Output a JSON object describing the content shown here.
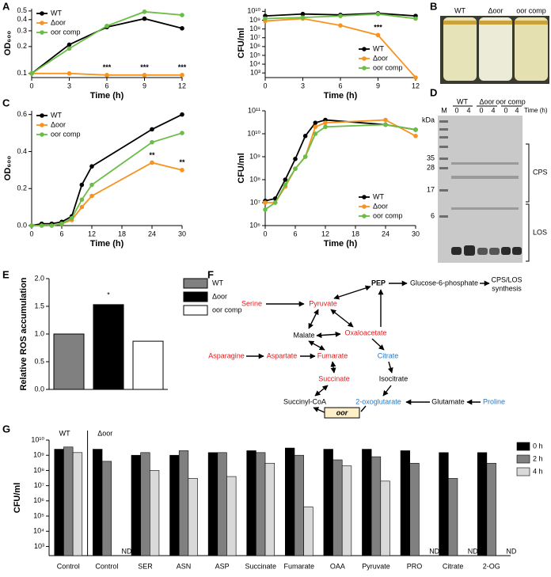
{
  "panels": [
    "A",
    "B",
    "C",
    "D",
    "E",
    "F",
    "G"
  ],
  "chart_data": [
    {
      "type": "line",
      "xlabel": "Time (h)",
      "ylabel": "OD₆₀₀",
      "log_y": true,
      "xlim": [
        0,
        12
      ],
      "xticks": [
        0,
        3,
        6,
        9,
        12
      ],
      "ylim": [
        0.09,
        0.53
      ],
      "yticks": [
        0.1,
        0.2,
        0.3,
        0.4,
        0.5
      ],
      "legend": "upper left",
      "x": [
        0,
        3,
        6,
        9,
        12
      ],
      "series": [
        {
          "name": "WT",
          "color": "#000000",
          "values": [
            0.1,
            0.21,
            0.33,
            0.41,
            0.32
          ]
        },
        {
          "name": "Δoor",
          "color": "#f7931e",
          "values": [
            0.1,
            0.1,
            0.096,
            0.096,
            0.096
          ]
        },
        {
          "name": "oor comp",
          "color": "#6abd45",
          "values": [
            0.1,
            0.19,
            0.34,
            0.49,
            0.45
          ]
        }
      ],
      "annotations": [
        {
          "x": 6,
          "text": "***"
        },
        {
          "x": 9,
          "text": "***"
        },
        {
          "x": 12,
          "text": "***"
        }
      ]
    },
    {
      "type": "line",
      "xlabel": "Time (h)",
      "ylabel": "CFU/ml",
      "log_y": true,
      "xlim": [
        0,
        12
      ],
      "xticks": [
        0,
        3,
        6,
        9,
        12
      ],
      "ylim": [
        300,
        20000000000.0
      ],
      "yticks": [
        {
          "value": 1000,
          "label": "10³"
        },
        {
          "value": 10000.0,
          "label": "10⁴"
        },
        {
          "value": 100000.0,
          "label": "10⁵"
        },
        {
          "value": 1000000.0,
          "label": "10⁶"
        },
        {
          "value": 10000000.0,
          "label": "10⁷"
        },
        {
          "value": 100000000.0,
          "label": "10⁸"
        },
        {
          "value": 1000000000.0,
          "label": "10⁹"
        },
        {
          "value": 10000000000.0,
          "label": "10¹⁰"
        }
      ],
      "legend": "lower right",
      "x": [
        0,
        3,
        6,
        9,
        12
      ],
      "series": [
        {
          "name": "WT",
          "color": "#000000",
          "values": [
            3000000000.0,
            5000000000.0,
            4000000000.0,
            6000000000.0,
            3000000000.0
          ]
        },
        {
          "name": "Δoor",
          "color": "#f7931e",
          "values": [
            800000000.0,
            1500000000.0,
            250000000.0,
            20000000.0,
            300
          ]
        },
        {
          "name": "oor comp",
          "color": "#6abd45",
          "values": [
            1500000000.0,
            2000000000.0,
            3000000000.0,
            5000000000.0,
            1500000000.0
          ]
        }
      ],
      "annotations": [
        {
          "x": 9,
          "text": "***"
        }
      ]
    },
    {
      "type": "line",
      "xlabel": "Time (h)",
      "ylabel": "OD₆₀₀",
      "log_y": false,
      "xlim": [
        0,
        30
      ],
      "xticks": [
        0,
        6,
        12,
        18,
        24,
        30
      ],
      "ylim": [
        0,
        0.62
      ],
      "yticks": [
        {
          "value": 0,
          "label": "0.0"
        },
        0.2,
        0.4,
        0.6
      ],
      "legend": "upper left",
      "x": [
        0,
        2,
        4,
        6,
        8,
        10,
        12,
        24,
        30
      ],
      "series": [
        {
          "name": "WT",
          "color": "#000000",
          "values": [
            0,
            0.01,
            0.01,
            0.02,
            0.05,
            0.22,
            0.32,
            0.52,
            0.6
          ]
        },
        {
          "name": "Δoor",
          "color": "#f7931e",
          "values": [
            0,
            0,
            0,
            0.01,
            0.03,
            0.1,
            0.16,
            0.34,
            0.3
          ]
        },
        {
          "name": "oor comp",
          "color": "#6abd45",
          "values": [
            0,
            0,
            0,
            0.01,
            0.04,
            0.14,
            0.22,
            0.45,
            0.5
          ]
        }
      ],
      "annotations": [
        {
          "x": 24,
          "text": "**"
        },
        {
          "x": 30,
          "text": "**"
        }
      ]
    },
    {
      "type": "line",
      "xlabel": "Time (h)",
      "ylabel": "CFU/ml",
      "log_y": true,
      "xlim": [
        0,
        30
      ],
      "xticks": [
        0,
        6,
        12,
        18,
        24,
        30
      ],
      "ylim": [
        1000000.0,
        100000000000.0
      ],
      "yticks": [
        {
          "value": 1000000.0,
          "label": "10⁶"
        },
        {
          "value": 10000000.0,
          "label": "10⁷"
        },
        {
          "value": 100000000.0,
          "label": "10⁸"
        },
        {
          "value": 1000000000.0,
          "label": "10⁹"
        },
        {
          "value": 10000000000.0,
          "label": "10¹⁰"
        },
        {
          "value": 100000000000.0,
          "label": "10¹¹"
        }
      ],
      "legend": "lower right",
      "x": [
        0,
        2,
        4,
        6,
        8,
        10,
        12,
        24,
        30
      ],
      "series": [
        {
          "name": "WT",
          "color": "#000000",
          "values": [
            12000000.0,
            15000000.0,
            100000000.0,
            800000000.0,
            8000000000.0,
            30000000000.0,
            40000000000.0,
            25000000000.0,
            15000000000.0
          ]
        },
        {
          "name": "Δoor",
          "color": "#f7931e",
          "values": [
            10000000.0,
            10000000.0,
            50000000.0,
            300000000.0,
            1000000000.0,
            20000000000.0,
            30000000000.0,
            40000000000.0,
            8000000000.0
          ]
        },
        {
          "name": "oor comp",
          "color": "#6abd45",
          "values": [
            5000000.0,
            10000000.0,
            60000000.0,
            300000000.0,
            1000000000.0,
            10000000000.0,
            20000000000.0,
            25000000000.0,
            15000000000.0
          ]
        }
      ],
      "annotations": []
    },
    {
      "type": "bar",
      "ylabel": "Relative ROS accumulation",
      "categories": [
        "WT",
        "Δoor",
        "oor comp"
      ],
      "colors": [
        "#808080",
        "#000000",
        "#ffffff"
      ],
      "values": [
        1.0,
        1.53,
        0.87
      ],
      "annotations": [
        null,
        "*",
        null
      ],
      "ylim": [
        0,
        2
      ],
      "yticks": [
        {
          "value": 0,
          "label": "0.0"
        },
        0.5,
        {
          "value": 1,
          "label": "1.0"
        },
        1.5,
        {
          "value": 2,
          "label": "2.0"
        }
      ]
    },
    {
      "type": "grouped_bar",
      "ylabel": "CFU/ml",
      "log_y": true,
      "categories": [
        "Control",
        "Control",
        "SER",
        "ASN",
        "ASP",
        "Succinate",
        "Fumarate",
        "OAA",
        "Pyruvate",
        "PRO",
        "Citrate",
        "2-OG"
      ],
      "category_colors": [
        "#000000",
        "#000000",
        "#e31a1c",
        "#e31a1c",
        "#e31a1c",
        "#e31a1c",
        "#e31a1c",
        "#e31a1c",
        "#e31a1c",
        "#1f78c8",
        "#1f78c8",
        "#1f78c8"
      ],
      "group_labels": [
        "WT",
        "Δoor",
        null,
        null,
        null,
        null,
        null,
        null,
        null,
        null,
        null,
        null
      ],
      "annotations": [
        null,
        "ND",
        null,
        null,
        null,
        null,
        null,
        null,
        null,
        "ND",
        "ND",
        "ND"
      ],
      "ylim": [
        250,
        10000000000.0
      ],
      "yticks": [
        {
          "value": 1000,
          "label": "10³"
        },
        {
          "value": 10000.0,
          "label": "10⁴"
        },
        {
          "value": 100000.0,
          "label": "10⁵"
        },
        {
          "value": 1000000.0,
          "label": "10⁶"
        },
        {
          "value": 10000000.0,
          "label": "10⁷"
        },
        {
          "value": 100000000.0,
          "label": "10⁸"
        },
        {
          "value": 1000000000.0,
          "label": "10⁹"
        },
        {
          "value": 10000000000.0,
          "label": "10¹⁰"
        }
      ],
      "series": [
        {
          "name": "0 h",
          "color": "#000000",
          "values": [
            2500000000.0,
            2500000000.0,
            1000000000.0,
            1000000000.0,
            1500000000.0,
            2000000000.0,
            3000000000.0,
            2500000000.0,
            2500000000.0,
            2000000000.0,
            1500000000.0,
            1500000000.0
          ]
        },
        {
          "name": "2 h",
          "color": "#808080",
          "values": [
            3500000000.0,
            400000000.0,
            1500000000.0,
            2000000000.0,
            1500000000.0,
            1500000000.0,
            1000000000.0,
            500000000.0,
            800000000.0,
            300000000.0,
            30000000.0,
            300000000.0
          ]
        },
        {
          "name": "4 h",
          "color": "#d9d9d9",
          "values": [
            1500000000.0,
            null,
            100000000.0,
            30000000.0,
            40000000.0,
            300000000.0,
            400000.0,
            200000000.0,
            20000000.0,
            null,
            null,
            null
          ]
        }
      ]
    }
  ],
  "photo": {
    "labels": [
      "WT",
      "Δoor",
      "oor comp"
    ]
  },
  "gel": {
    "ladder": "M",
    "strains": [
      "WT",
      "Δoor",
      "oor comp"
    ],
    "times": [
      "0",
      "4",
      "0",
      "4",
      "0",
      "4"
    ],
    "time_label": "Time (h)",
    "unit": "kDa",
    "markers": [
      "35",
      "28",
      "17",
      "6"
    ],
    "regions": [
      "CPS",
      "LOS"
    ]
  },
  "pathway": {
    "nodes": [
      {
        "label": "PEP",
        "color": "#000000"
      },
      {
        "label": "Glucose-6-phosphate",
        "color": "#000000"
      },
      {
        "label": "Serine",
        "color": "#e31a1c"
      },
      {
        "label": "Pyruvate",
        "color": "#e31a1c"
      },
      {
        "label": "Malate",
        "color": "#000000"
      },
      {
        "label": "Oxaloacetate",
        "color": "#e31a1c"
      },
      {
        "label": "Asparagine",
        "color": "#e31a1c"
      },
      {
        "label": "Aspartate",
        "color": "#e31a1c"
      },
      {
        "label": "Fumarate",
        "color": "#e31a1c"
      },
      {
        "label": "Citrate",
        "color": "#1f78c8"
      },
      {
        "label": "Succinate",
        "color": "#e31a1c"
      },
      {
        "label": "Isocitrate",
        "color": "#000000"
      },
      {
        "label": "Succinyl-CoA",
        "color": "#000000"
      },
      {
        "label": "2-oxoglutarate",
        "color": "#1f78c8"
      },
      {
        "label": "Glutamate",
        "color": "#000000"
      },
      {
        "label": "Proline",
        "color": "#1f78c8"
      }
    ],
    "output": [
      "CPS/LOS",
      "synthesis"
    ],
    "enzyme": "oor"
  }
}
